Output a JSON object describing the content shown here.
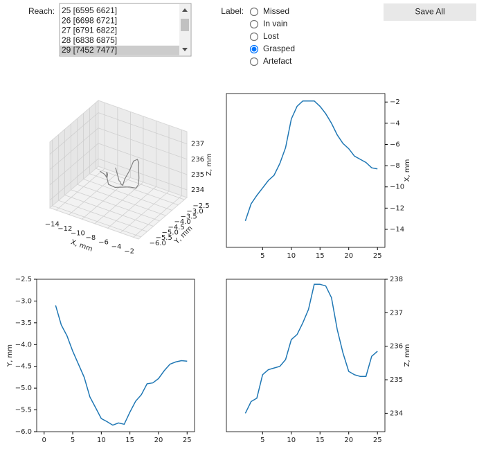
{
  "controls": {
    "reach": {
      "label": "Reach:",
      "items": [
        "25 [6595 6621]",
        "26 [6698 6721]",
        "27 [6791 6822]",
        "28 [6838 6875]",
        "29 [7452 7477]"
      ],
      "selected": 4
    },
    "label": {
      "label": "Label:",
      "options": [
        "Missed",
        "In vain",
        "Lost",
        "Grasped",
        "Artefact"
      ],
      "selected": 3
    },
    "save_button": "Save All"
  },
  "chart_data": [
    {
      "type": "line3d",
      "xlabel": "X, mm",
      "ylabel": "Y, mm",
      "zlabel": "Z, mm",
      "color": "#808080",
      "xlim": [
        -15,
        -1.2
      ],
      "ylim": [
        -6.2,
        -2.3
      ],
      "zlim": [
        233.5,
        237.8
      ],
      "xticks": [
        {
          "value": -14,
          "label": "−14"
        },
        {
          "value": -12,
          "label": "−12"
        },
        {
          "value": -10,
          "label": "−10"
        },
        {
          "value": -8,
          "label": "−8"
        },
        {
          "value": -6,
          "label": "−6"
        },
        {
          "value": -4,
          "label": "−4"
        },
        {
          "value": -2,
          "label": "−2"
        }
      ],
      "yticks": [
        {
          "value": -6.0,
          "label": "−6.0"
        },
        {
          "value": -5.5,
          "label": "−5.5"
        },
        {
          "value": -5.0,
          "label": "−5.0"
        },
        {
          "value": -4.5,
          "label": "−4.5"
        },
        {
          "value": -4.0,
          "label": "−4.0"
        },
        {
          "value": -3.5,
          "label": "−3.5"
        },
        {
          "value": -3.0,
          "label": "−3.0"
        },
        {
          "value": -2.5,
          "label": "−2.5"
        }
      ],
      "zticks": [
        234,
        235,
        236,
        237
      ]
    },
    {
      "type": "line",
      "ylabel": "X, mm",
      "yaxis_side": "right",
      "color": "#1f77b4",
      "x": [
        2,
        3,
        4,
        5,
        6,
        7,
        8,
        9,
        10,
        11,
        12,
        13,
        14,
        15,
        16,
        17,
        18,
        19,
        20,
        21,
        22,
        23,
        24,
        25
      ],
      "values": [
        -13.2,
        -11.6,
        -10.8,
        -10.1,
        -9.4,
        -8.9,
        -7.8,
        -6.3,
        -3.6,
        -2.4,
        -1.9,
        -1.9,
        -1.9,
        -2.4,
        -3.1,
        -4.0,
        -5.1,
        -5.9,
        -6.4,
        -7.1,
        -7.4,
        -7.7,
        -8.2,
        -8.3
      ],
      "xlim": [
        -1.3,
        26.3
      ],
      "ylim": [
        -15.7,
        -1.2
      ],
      "xticks": [
        5,
        10,
        15,
        20,
        25
      ],
      "yticks": [
        {
          "value": -14,
          "label": "−14"
        },
        {
          "value": -12,
          "label": "−12"
        },
        {
          "value": -10,
          "label": "−10"
        },
        {
          "value": -8,
          "label": "−8"
        },
        {
          "value": -6,
          "label": "−6"
        },
        {
          "value": -4,
          "label": "−4"
        },
        {
          "value": -2,
          "label": "−2"
        }
      ]
    },
    {
      "type": "line",
      "ylabel": "Y, mm",
      "yaxis_side": "left",
      "color": "#1f77b4",
      "x": [
        2,
        3,
        4,
        5,
        6,
        7,
        8,
        9,
        10,
        11,
        12,
        13,
        14,
        15,
        16,
        17,
        18,
        19,
        20,
        21,
        22,
        23,
        24,
        25
      ],
      "values": [
        -3.1,
        -3.55,
        -3.8,
        -4.15,
        -4.45,
        -4.75,
        -5.2,
        -5.45,
        -5.7,
        -5.77,
        -5.85,
        -5.8,
        -5.83,
        -5.55,
        -5.3,
        -5.15,
        -4.9,
        -4.88,
        -4.78,
        -4.6,
        -4.45,
        -4.4,
        -4.37,
        -4.38
      ],
      "xlim": [
        -1.3,
        26.3
      ],
      "ylim": [
        -6.0,
        -2.5
      ],
      "xticks": [
        0,
        5,
        10,
        15,
        20,
        25
      ],
      "yticks": [
        {
          "value": -6.0,
          "label": "−6.0"
        },
        {
          "value": -5.5,
          "label": "−5.5"
        },
        {
          "value": -5.0,
          "label": "−5.0"
        },
        {
          "value": -4.5,
          "label": "−4.5"
        },
        {
          "value": -4.0,
          "label": "−4.0"
        },
        {
          "value": -3.5,
          "label": "−3.5"
        },
        {
          "value": -3.0,
          "label": "−3.0"
        },
        {
          "value": -2.5,
          "label": "−2.5"
        }
      ]
    },
    {
      "type": "line",
      "ylabel": "Z, mm",
      "yaxis_side": "right",
      "color": "#1f77b4",
      "x": [
        2,
        3,
        4,
        5,
        6,
        7,
        8,
        9,
        10,
        11,
        12,
        13,
        14,
        15,
        16,
        17,
        18,
        19,
        20,
        21,
        22,
        23,
        24,
        25
      ],
      "values": [
        234.0,
        234.35,
        234.45,
        235.15,
        235.3,
        235.35,
        235.4,
        235.6,
        236.2,
        236.35,
        236.7,
        237.1,
        237.85,
        237.85,
        237.8,
        237.45,
        236.5,
        235.8,
        235.25,
        235.15,
        235.1,
        235.1,
        235.7,
        235.85
      ],
      "xlim": [
        -1.3,
        26.3
      ],
      "ylim": [
        233.45,
        238.0
      ],
      "xticks": [
        5,
        10,
        15,
        20,
        25
      ],
      "yticks": [
        234,
        235,
        236,
        237,
        238
      ]
    }
  ]
}
